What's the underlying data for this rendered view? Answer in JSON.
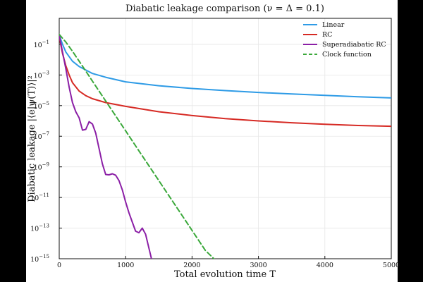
{
  "chart_data": {
    "type": "line",
    "title": "Diabatic leakage comparison (ν = Δ = 0.1)",
    "xlabel": "Total evolution time T",
    "ylabel": "Diabatic leakage |⟨e|ψ(T)⟩|²",
    "xlim": [
      0,
      5000
    ],
    "ylim_log10": [
      -15,
      0.7
    ],
    "yscale": "log",
    "grid": true,
    "legend_position": "top-right",
    "x_ticks": [
      0,
      1000,
      2000,
      3000,
      4000,
      5000
    ],
    "x_tick_labels": [
      "0",
      "1000",
      "2000",
      "3000",
      "4000",
      "5000"
    ],
    "y_ticks_exponent": [
      -1,
      -3,
      -5,
      -7,
      -9,
      -11,
      -13,
      -15
    ],
    "y_tick_base": "10",
    "series": [
      {
        "name": "Linear",
        "color": "#2e9be6",
        "dashed": false,
        "x": [
          0,
          50,
          100,
          200,
          300,
          500,
          700,
          1000,
          1500,
          2000,
          2500,
          3000,
          3500,
          4000,
          4500,
          5000
        ],
        "y_log10": [
          -0.4,
          -1.0,
          -1.5,
          -2.1,
          -2.45,
          -2.9,
          -3.15,
          -3.45,
          -3.7,
          -3.88,
          -4.02,
          -4.14,
          -4.24,
          -4.33,
          -4.42,
          -4.5
        ]
      },
      {
        "name": "RC",
        "color": "#d62a24",
        "dashed": false,
        "x": [
          0,
          50,
          100,
          150,
          200,
          300,
          400,
          500,
          700,
          1000,
          1500,
          2000,
          2500,
          3000,
          3500,
          4000,
          4500,
          5000
        ],
        "y_log10": [
          -0.5,
          -1.6,
          -2.4,
          -3.0,
          -3.5,
          -4.05,
          -4.35,
          -4.55,
          -4.8,
          -5.05,
          -5.4,
          -5.65,
          -5.85,
          -6.0,
          -6.12,
          -6.22,
          -6.3,
          -6.35
        ]
      },
      {
        "name": "Superadiabatic RC",
        "color": "#8b1fa6",
        "dashed": false,
        "x": [
          0,
          50,
          100,
          150,
          200,
          250,
          300,
          350,
          400,
          450,
          500,
          550,
          600,
          650,
          700,
          750,
          800,
          850,
          900,
          950,
          1000,
          1050,
          1100,
          1150,
          1200,
          1250,
          1300,
          1350,
          1400
        ],
        "y_log10": [
          -0.4,
          -1.5,
          -2.6,
          -3.8,
          -4.8,
          -5.4,
          -5.8,
          -6.6,
          -6.55,
          -6.05,
          -6.2,
          -6.8,
          -7.8,
          -8.8,
          -9.5,
          -9.52,
          -9.45,
          -9.55,
          -9.9,
          -10.5,
          -11.3,
          -12.0,
          -12.6,
          -13.2,
          -13.3,
          -13.0,
          -13.4,
          -14.3,
          -15.2
        ]
      },
      {
        "name": "Clock function",
        "color": "#3aa83a",
        "dashed": true,
        "x": [
          0,
          100,
          200,
          300,
          400,
          500,
          600,
          800,
          1000,
          1200,
          1400,
          1600,
          1800,
          2000,
          2200,
          2400
        ],
        "y_log10": [
          -0.35,
          -0.85,
          -1.45,
          -2.1,
          -2.75,
          -3.4,
          -4.05,
          -5.35,
          -6.65,
          -7.95,
          -9.25,
          -10.55,
          -11.85,
          -13.15,
          -14.45,
          -15.3
        ]
      }
    ]
  }
}
